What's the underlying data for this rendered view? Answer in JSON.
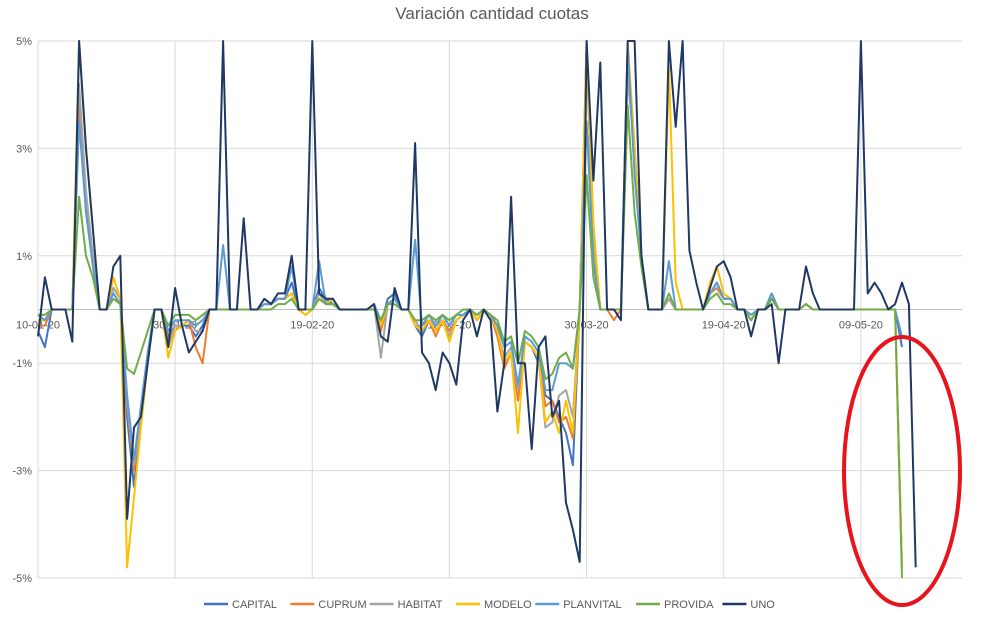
{
  "chart_data": {
    "type": "line",
    "title": "Variación cantidad cuotas",
    "ylim": [
      -5,
      5
    ],
    "y_ticks": [
      "5%",
      "3%",
      "1%",
      "-1%",
      "-3%",
      "-5%"
    ],
    "y_tick_values": [
      5,
      3,
      1,
      -1,
      -3,
      -5
    ],
    "x_tick_labels": [
      "10-01-20",
      "30-01-20",
      "19-02-20",
      "10-03-20",
      "30-03-20",
      "19-04-20",
      "09-05-20"
    ],
    "x_tick_index": [
      0,
      20,
      40,
      60,
      80,
      100,
      120
    ],
    "grid": true,
    "legend_position": "bottom",
    "series": [
      {
        "name": "CAPITAL",
        "color": "#4472C4",
        "values": [
          -0.4,
          -0.7,
          0.0,
          0.0,
          0.0,
          0.0,
          4.0,
          2.0,
          1.0,
          0.0,
          0.0,
          0.4,
          0.2,
          -2.0,
          -3.3,
          -2.0,
          -1.0,
          0.0,
          0.0,
          -0.5,
          -0.3,
          -0.3,
          -0.3,
          -0.5,
          -0.3,
          0.0,
          0.0,
          0.0,
          0.0,
          0.0,
          0.0,
          0.0,
          0.0,
          0.1,
          0.1,
          0.2,
          0.2,
          0.5,
          0.0,
          0.0,
          0.0,
          0.4,
          0.2,
          0.1,
          0.0,
          0.0,
          0.0,
          0.0,
          0.0,
          0.1,
          -0.3,
          0.2,
          0.3,
          0.0,
          0.0,
          -0.3,
          -0.5,
          -0.2,
          -0.3,
          -0.2,
          -0.4,
          -0.2,
          -0.1,
          0.0,
          -0.2,
          0.0,
          -0.1,
          -0.5,
          -1.0,
          -0.8,
          -1.5,
          -0.6,
          -0.7,
          -1.0,
          -1.6,
          -1.7,
          -2.0,
          -2.3,
          -2.9,
          0.0,
          5.0,
          1.0,
          0.0,
          0.0,
          0.0,
          0.0,
          4.9,
          3.0,
          1.0,
          0.0,
          0.0,
          0.0,
          0.2,
          0.0,
          0.0,
          0.0,
          0.0,
          0.0,
          0.3,
          0.5,
          0.2,
          0.2,
          0.0,
          0.0,
          -0.2,
          0.0,
          0.0,
          0.2,
          0.0,
          0.0,
          0.0,
          0.0,
          0.1,
          0.0,
          0.0,
          0.0,
          0.0,
          0.0,
          0.0,
          0.0,
          0.0,
          0.0,
          0.0,
          0.0,
          0.0,
          0.0,
          -0.7
        ]
      },
      {
        "name": "CUPRUM",
        "color": "#ED7D31",
        "values": [
          -0.3,
          -0.3,
          0.0,
          0.0,
          0.0,
          0.0,
          3.8,
          2.0,
          1.0,
          0.0,
          0.0,
          0.4,
          0.2,
          -1.8,
          -3.0,
          -1.9,
          -0.9,
          0.0,
          0.0,
          -0.6,
          -0.3,
          -0.3,
          -0.2,
          -0.7,
          -1.0,
          0.0,
          0.0,
          0.0,
          0.0,
          0.0,
          0.0,
          0.0,
          0.0,
          0.1,
          0.1,
          0.2,
          0.2,
          0.3,
          0.0,
          -0.1,
          0.0,
          0.2,
          0.1,
          0.2,
          0.0,
          0.0,
          0.0,
          0.0,
          0.0,
          0.1,
          -0.4,
          0.1,
          0.2,
          0.0,
          0.0,
          -0.3,
          -0.3,
          -0.2,
          -0.5,
          -0.2,
          -0.4,
          -0.2,
          -0.1,
          0.0,
          -0.2,
          0.0,
          -0.1,
          -0.5,
          -1.1,
          -0.8,
          -1.7,
          -0.6,
          -0.7,
          -0.9,
          -1.8,
          -1.7,
          -2.1,
          -2.0,
          -2.4,
          0.0,
          4.8,
          1.5,
          0.0,
          0.0,
          -0.2,
          0.0,
          4.5,
          3.0,
          1.0,
          0.0,
          0.0,
          0.0,
          0.2,
          0.0,
          0.0,
          0.0,
          0.0,
          0.0,
          0.3,
          0.4,
          0.2,
          0.2,
          0.0,
          0.0,
          -0.2,
          0.0,
          0.0,
          0.3,
          0.0,
          0.0,
          0.0,
          0.0,
          0.1,
          0.0,
          0.0,
          0.0,
          0.0,
          0.0,
          0.0,
          0.0,
          0.0,
          0.0,
          0.0,
          0.0,
          0.0,
          0.0,
          -4.8
        ]
      },
      {
        "name": "HABITAT",
        "color": "#A5A5A5",
        "values": [
          -0.2,
          -0.2,
          0.0,
          0.0,
          0.0,
          0.0,
          4.2,
          2.2,
          1.0,
          0.0,
          0.0,
          0.4,
          0.2,
          -1.7,
          -2.9,
          -2.0,
          -0.9,
          0.0,
          0.0,
          -0.7,
          -0.3,
          -0.3,
          -0.2,
          -0.4,
          -0.4,
          0.0,
          0.0,
          0.0,
          0.0,
          0.0,
          0.0,
          0.0,
          0.0,
          0.1,
          0.1,
          0.2,
          0.2,
          0.3,
          0.0,
          0.0,
          0.0,
          0.3,
          0.1,
          0.1,
          0.0,
          0.0,
          0.0,
          0.0,
          0.0,
          0.1,
          -0.9,
          0.1,
          0.2,
          0.0,
          0.0,
          -0.2,
          -0.4,
          -0.2,
          -0.3,
          -0.2,
          -0.5,
          -0.2,
          -0.1,
          0.0,
          -0.2,
          0.0,
          -0.1,
          -0.4,
          -0.9,
          -0.7,
          -1.5,
          -0.6,
          -0.7,
          -0.9,
          -2.2,
          -2.1,
          -1.6,
          -1.5,
          -2.0,
          0.0,
          4.8,
          1.2,
          0.0,
          0.0,
          0.0,
          0.0,
          4.3,
          3.0,
          1.0,
          0.0,
          0.0,
          0.0,
          0.2,
          0.0,
          0.0,
          0.0,
          0.0,
          0.0,
          0.3,
          0.5,
          0.2,
          0.2,
          0.0,
          0.0,
          -0.2,
          0.0,
          0.0,
          0.3,
          0.0,
          0.0,
          0.0,
          0.0,
          0.1,
          0.0,
          0.0,
          0.0,
          0.0,
          0.0,
          0.0,
          0.0,
          0.0,
          0.0,
          0.0,
          0.0,
          0.0,
          0.0,
          -4.8
        ]
      },
      {
        "name": "MODELO",
        "color": "#FFC000",
        "values": [
          -0.2,
          -0.2,
          0.0,
          0.0,
          0.0,
          0.0,
          5.0,
          3.0,
          1.5,
          0.0,
          0.0,
          0.6,
          0.2,
          -4.8,
          -3.5,
          -2.2,
          -1.0,
          0.0,
          0.0,
          -0.9,
          -0.4,
          -0.3,
          -0.2,
          -0.3,
          -0.2,
          0.0,
          0.0,
          0.0,
          0.0,
          0.0,
          0.0,
          0.0,
          0.0,
          0.1,
          0.1,
          0.2,
          0.2,
          0.3,
          0.0,
          -0.1,
          0.0,
          0.2,
          0.1,
          0.2,
          0.0,
          0.0,
          0.0,
          0.0,
          0.0,
          0.1,
          -0.3,
          0.1,
          0.2,
          0.0,
          0.0,
          -0.3,
          -0.4,
          -0.2,
          -0.4,
          -0.2,
          -0.6,
          -0.2,
          -0.1,
          0.0,
          -0.2,
          0.0,
          -0.1,
          -0.4,
          -1.0,
          -0.8,
          -2.3,
          -0.6,
          -0.7,
          -0.9,
          -2.1,
          -1.9,
          -2.3,
          -1.7,
          -2.3,
          0.0,
          5.0,
          1.6,
          0.0,
          0.0,
          0.0,
          0.0,
          5.0,
          3.0,
          1.0,
          0.0,
          0.0,
          0.0,
          4.5,
          0.5,
          0.0,
          0.0,
          0.0,
          0.0,
          0.5,
          0.8,
          0.3,
          0.2,
          0.0,
          0.0,
          -0.2,
          0.0,
          0.0,
          0.3,
          0.0,
          0.0,
          0.0,
          0.0,
          0.1,
          0.0,
          0.0,
          0.0,
          0.0,
          0.0,
          0.0,
          0.0,
          0.0,
          0.0,
          0.0,
          0.0,
          0.0,
          0.0,
          -4.8
        ]
      },
      {
        "name": "PLANVITAL",
        "color": "#5B9BD5",
        "values": [
          -0.1,
          -0.2,
          0.0,
          0.0,
          0.0,
          0.0,
          3.5,
          1.8,
          0.8,
          0.0,
          0.0,
          0.3,
          0.1,
          -1.6,
          -2.8,
          -1.8,
          -0.8,
          0.0,
          0.0,
          -0.4,
          -0.2,
          -0.2,
          -0.2,
          -0.3,
          -0.2,
          0.0,
          0.0,
          1.2,
          0.0,
          0.0,
          0.0,
          0.0,
          0.0,
          0.1,
          0.1,
          0.2,
          0.2,
          0.8,
          0.0,
          0.0,
          0.0,
          0.9,
          0.1,
          0.1,
          0.0,
          0.0,
          0.0,
          0.0,
          0.0,
          0.1,
          -0.2,
          0.1,
          0.2,
          0.0,
          0.0,
          1.3,
          -0.3,
          -0.1,
          -0.3,
          -0.1,
          -0.3,
          -0.1,
          -0.1,
          0.0,
          -0.1,
          0.0,
          -0.1,
          -0.3,
          -0.7,
          -0.6,
          -1.4,
          -0.5,
          -0.6,
          -0.8,
          -1.5,
          -1.5,
          -1.0,
          -1.0,
          -1.1,
          0.0,
          3.5,
          0.9,
          0.0,
          0.0,
          0.0,
          0.0,
          4.9,
          2.5,
          1.0,
          0.0,
          0.0,
          0.0,
          0.9,
          0.0,
          0.0,
          0.0,
          0.0,
          0.0,
          0.3,
          0.5,
          0.2,
          0.2,
          0.0,
          0.0,
          -0.1,
          0.0,
          0.0,
          0.3,
          0.0,
          0.0,
          0.0,
          0.0,
          0.1,
          0.0,
          0.0,
          0.0,
          0.0,
          0.0,
          0.0,
          0.0,
          0.0,
          0.0,
          0.0,
          0.0,
          0.0,
          0.0,
          -0.5
        ]
      },
      {
        "name": "PROVIDA",
        "color": "#70AD47",
        "values": [
          -0.1,
          -0.1,
          0.0,
          0.0,
          0.0,
          0.0,
          2.1,
          1.0,
          0.6,
          0.0,
          0.0,
          0.2,
          0.1,
          -1.1,
          -1.2,
          -0.8,
          -0.4,
          0.0,
          0.0,
          -0.3,
          -0.1,
          -0.1,
          -0.1,
          -0.2,
          -0.1,
          0.0,
          0.0,
          0.0,
          0.0,
          0.0,
          0.0,
          0.0,
          0.0,
          0.0,
          0.0,
          0.1,
          0.1,
          0.2,
          0.0,
          0.0,
          0.0,
          0.2,
          0.1,
          0.1,
          0.0,
          0.0,
          0.0,
          0.0,
          0.0,
          0.0,
          -0.2,
          0.1,
          0.1,
          0.0,
          0.0,
          -0.2,
          -0.2,
          -0.1,
          -0.2,
          -0.1,
          -0.2,
          -0.1,
          0.0,
          0.0,
          -0.1,
          0.0,
          -0.1,
          -0.2,
          -0.6,
          -0.5,
          -1.0,
          -0.4,
          -0.5,
          -0.7,
          -1.3,
          -1.2,
          -0.9,
          -0.8,
          -1.1,
          0.0,
          2.5,
          0.6,
          0.0,
          0.0,
          0.0,
          0.0,
          3.8,
          1.8,
          0.8,
          0.0,
          0.0,
          0.0,
          0.3,
          0.0,
          0.0,
          0.0,
          0.0,
          0.0,
          0.2,
          0.3,
          0.1,
          0.1,
          0.0,
          0.0,
          -0.2,
          0.0,
          0.0,
          0.2,
          0.0,
          0.0,
          0.0,
          0.0,
          0.1,
          0.0,
          0.0,
          0.0,
          0.0,
          0.0,
          0.0,
          0.0,
          0.0,
          0.0,
          0.0,
          0.0,
          0.0,
          0.0,
          -5.0
        ]
      },
      {
        "name": "UNO",
        "color": "#203864",
        "values": [
          -0.5,
          0.6,
          0.0,
          0.0,
          0.0,
          -0.6,
          5.0,
          3.0,
          1.5,
          0.0,
          0.0,
          0.8,
          1.0,
          -3.9,
          -2.2,
          -2.0,
          -1.0,
          0.0,
          0.0,
          -0.7,
          0.4,
          -0.3,
          -0.8,
          -0.6,
          -0.4,
          0.0,
          0.0,
          5.0,
          0.0,
          0.0,
          1.7,
          0.0,
          0.0,
          0.2,
          0.1,
          0.3,
          0.3,
          1.0,
          0.0,
          0.0,
          5.0,
          0.3,
          0.2,
          0.2,
          0.0,
          0.0,
          0.0,
          0.0,
          0.0,
          0.1,
          -0.5,
          -0.6,
          0.4,
          0.0,
          0.0,
          3.1,
          -0.8,
          -1.0,
          -1.5,
          -0.8,
          -1.0,
          -1.4,
          -0.2,
          0.0,
          -0.5,
          0.0,
          -0.2,
          -1.9,
          -1.0,
          2.1,
          -1.0,
          -1.0,
          -2.6,
          -0.7,
          -0.5,
          -2.0,
          -1.7,
          -3.6,
          -4.1,
          -4.7,
          5.0,
          2.4,
          4.6,
          0.0,
          0.0,
          -0.2,
          5.0,
          5.0,
          1.0,
          0.0,
          0.0,
          0.0,
          5.0,
          3.4,
          5.0,
          1.1,
          0.5,
          0.0,
          0.4,
          0.8,
          0.9,
          0.6,
          0.0,
          0.0,
          -0.5,
          0.0,
          0.0,
          0.1,
          -1.0,
          0.0,
          0.0,
          0.0,
          0.8,
          0.3,
          0.0,
          0.0,
          0.0,
          0.0,
          0.0,
          0.0,
          5.0,
          0.3,
          0.5,
          0.3,
          0.0,
          0.1,
          0.5,
          0.1,
          -4.8
        ]
      }
    ]
  }
}
